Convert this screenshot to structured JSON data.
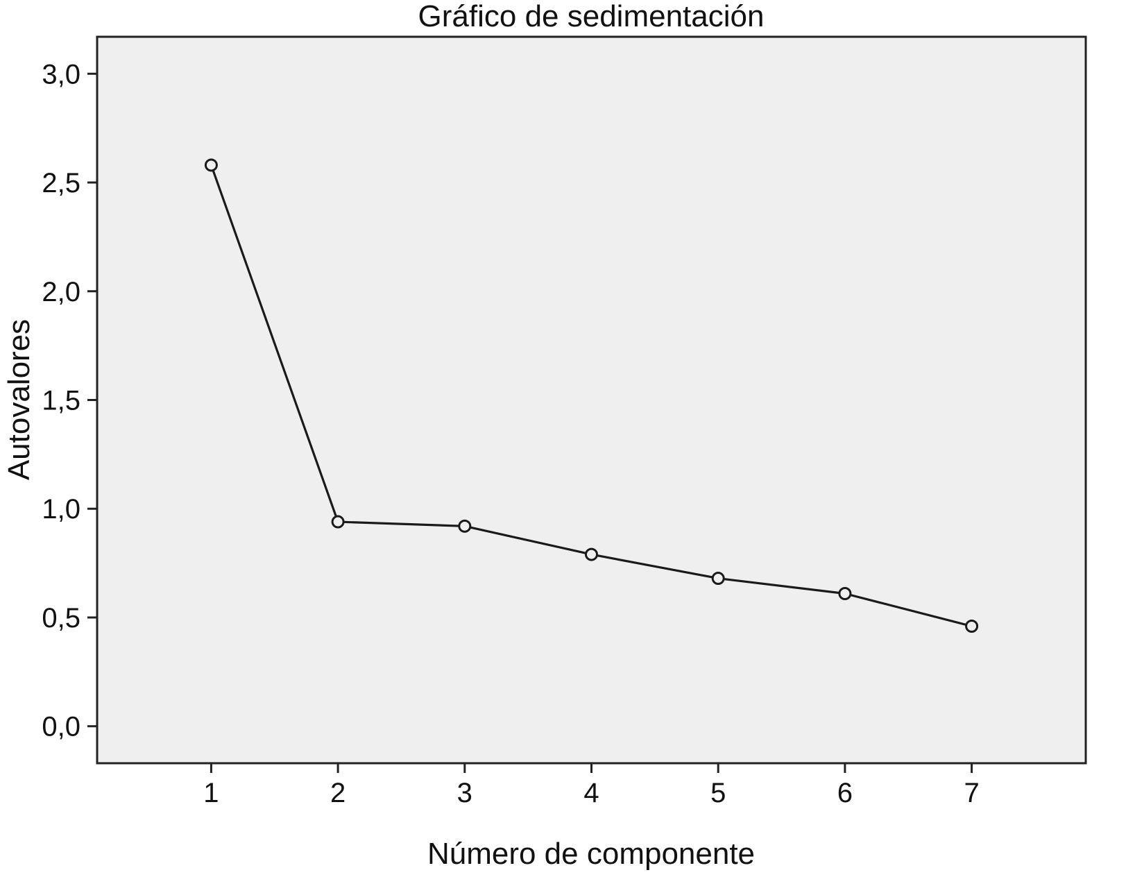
{
  "chart_data": {
    "type": "line",
    "title": "Gráfico de sedimentación",
    "xlabel": "Número de componente",
    "ylabel": "Autovalores",
    "x": [
      1,
      2,
      3,
      4,
      5,
      6,
      7
    ],
    "x_tick_labels": [
      "1",
      "2",
      "3",
      "4",
      "5",
      "6",
      "7"
    ],
    "x_range": [
      0.1,
      7.9
    ],
    "y_ticks": [
      0.0,
      0.5,
      1.0,
      1.5,
      2.0,
      2.5,
      3.0
    ],
    "y_tick_labels": [
      "0,0",
      "0,5",
      "1,0",
      "1,5",
      "2,0",
      "2,5",
      "3,0"
    ],
    "ylim": [
      -0.17,
      3.17
    ],
    "series": [
      {
        "values": [
          2.58,
          0.94,
          0.92,
          0.79,
          0.68,
          0.61,
          0.46
        ]
      }
    ],
    "marker": "open-circle",
    "grid": false,
    "colors": {
      "plot_background": "#efefef",
      "line": "#1a1a1a",
      "frame": "#222222"
    }
  }
}
